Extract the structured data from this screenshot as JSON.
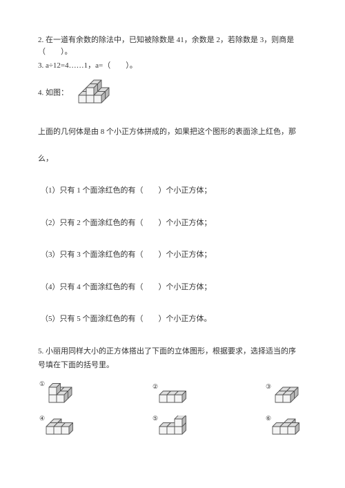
{
  "colors": {
    "text": "#333333",
    "bg": "#ffffff",
    "stroke": "#555555",
    "face_light": "#f5f5f5",
    "face_mid": "#dcdcdc",
    "face_dark": "#b8b8b8"
  },
  "q2": {
    "text": "2. 在一道有余数的除法中，已知被除数是 41，余数是 2，若除数是 3，则商是（　　）。"
  },
  "q3": {
    "text": "3. a÷12=4……1，a=（　　）。"
  },
  "q4": {
    "label": "4. 如图：",
    "desc": "上面的几何体是由 8 个小正方体拼成的，如果把这个图形的表面涂上红色，那",
    "desc2": "么，",
    "items": [
      "（1）只有 1 个面涂红色的有（　　）个小正方体；",
      "（2）只有 2 个面涂红色的有（　　）个小正方体；",
      "（3）只有 3 个面涂红色的有（　　）个小正方体；",
      "（4）只有 4 个面涂红色的有（　　）个小正方体；",
      "（5）只有 5 个面涂红色的有（　　）个小正方体。"
    ]
  },
  "q5": {
    "text1": "5. 小丽用同样大小的正方体搭出了下面的立体图形，根据要求，选择适当的序",
    "text2": "号填在下面的括号里。",
    "nums": [
      "①",
      "②",
      "③",
      "④",
      "⑤",
      "⑥"
    ]
  },
  "cube_unit": 11
}
